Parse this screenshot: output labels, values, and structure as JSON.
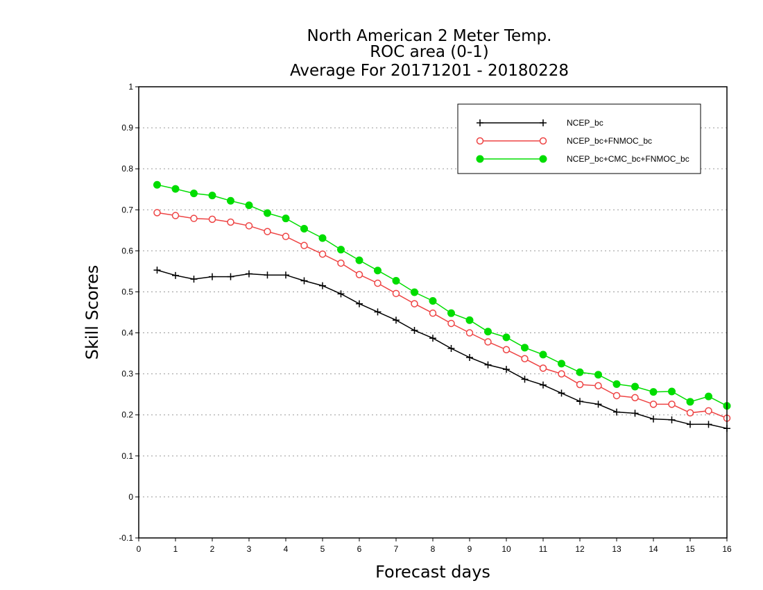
{
  "chart_data": {
    "type": "line",
    "title_lines": [
      "North American 2 Meter Temp.",
      "ROC area (0-1)",
      "Average For 20171201 - 20180228"
    ],
    "xlabel": "Forecast days",
    "ylabel": "Skill Scores",
    "xlim": [
      0,
      16
    ],
    "ylim": [
      -0.1,
      1
    ],
    "x_ticks": [
      0,
      1,
      2,
      3,
      4,
      5,
      6,
      7,
      8,
      9,
      10,
      11,
      12,
      13,
      14,
      15,
      16
    ],
    "y_ticks": [
      -0.1,
      0,
      0.1,
      0.2,
      0.3,
      0.4,
      0.5,
      0.6,
      0.7,
      0.8,
      0.9,
      1
    ],
    "y_tick_labels": [
      "-0.1",
      "0",
      "0.1",
      "0.2",
      "0.3",
      "0.4",
      "0.5",
      "0.6",
      "0.7",
      "0.8",
      "0.9",
      "1"
    ],
    "grid": "horizontal dotted",
    "legend_position": "top-right",
    "x": [
      0.5,
      1,
      1.5,
      2,
      2.5,
      3,
      3.5,
      4,
      4.5,
      5,
      5.5,
      6,
      6.5,
      7,
      7.5,
      8,
      8.5,
      9,
      9.5,
      10,
      10.5,
      11,
      11.5,
      12,
      12.5,
      13,
      13.5,
      14,
      14.5,
      15,
      15.5,
      16
    ],
    "series": [
      {
        "name": "NCEP_bc",
        "color": "#000000",
        "marker": "plus",
        "values": [
          0.553,
          0.54,
          0.531,
          0.537,
          0.537,
          0.544,
          0.541,
          0.541,
          0.527,
          0.515,
          0.495,
          0.471,
          0.451,
          0.431,
          0.406,
          0.387,
          0.362,
          0.34,
          0.322,
          0.311,
          0.287,
          0.273,
          0.253,
          0.233,
          0.226,
          0.207,
          0.204,
          0.19,
          0.188,
          0.177,
          0.177,
          0.167
        ]
      },
      {
        "name": "NCEP_bc+FNMOC_bc",
        "color": "#ee4444",
        "marker": "open-circle",
        "values": [
          0.693,
          0.686,
          0.679,
          0.677,
          0.67,
          0.661,
          0.647,
          0.635,
          0.613,
          0.592,
          0.57,
          0.542,
          0.521,
          0.496,
          0.471,
          0.448,
          0.423,
          0.4,
          0.378,
          0.359,
          0.337,
          0.314,
          0.3,
          0.274,
          0.271,
          0.247,
          0.242,
          0.226,
          0.226,
          0.205,
          0.21,
          0.192
        ]
      },
      {
        "name": "NCEP_bc+CMC_bc+FNMOC_bc",
        "color": "#00dd00",
        "marker": "filled-circle",
        "values": [
          0.761,
          0.751,
          0.74,
          0.735,
          0.722,
          0.711,
          0.692,
          0.679,
          0.654,
          0.631,
          0.603,
          0.577,
          0.552,
          0.527,
          0.499,
          0.478,
          0.448,
          0.431,
          0.403,
          0.389,
          0.364,
          0.347,
          0.325,
          0.304,
          0.298,
          0.275,
          0.269,
          0.256,
          0.257,
          0.232,
          0.245,
          0.222
        ]
      }
    ]
  }
}
